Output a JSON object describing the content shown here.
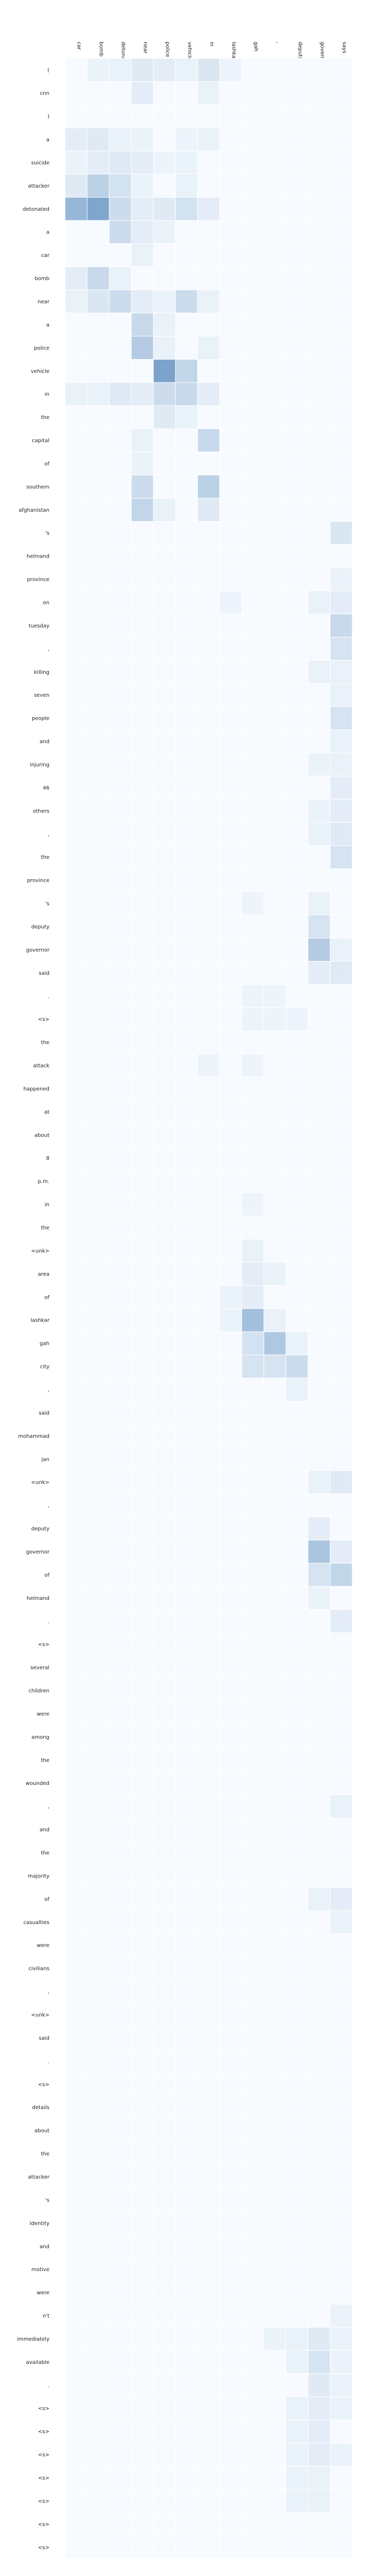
{
  "chart_data": {
    "type": "heatmap",
    "title": "",
    "xlabel": "",
    "ylabel": "",
    "colormap": "Blues",
    "color_low": "#f7fbff",
    "color_high": "#08519c",
    "value_range": [
      0,
      1
    ],
    "grid": true,
    "x_labels": [
      "car",
      "bomb",
      "detonated",
      "near",
      "police",
      "vehicle",
      "in",
      "lashkar",
      "gah",
      ",",
      "deputy",
      "governor",
      "says"
    ],
    "y_labels": [
      "(",
      "cnn",
      ")",
      "a",
      "suicide",
      "attacker",
      "detonated",
      "a",
      "car",
      "bomb",
      "near",
      "a",
      "police",
      "vehicle",
      "in",
      "the",
      "capital",
      "of",
      "southern",
      "afghanistan",
      "'s",
      "helmand",
      "province",
      "on",
      "tuesday",
      ",",
      "killing",
      "seven",
      "people",
      "and",
      "injuring",
      "46",
      "others",
      ",",
      "the",
      "province",
      "'s",
      "deputy",
      "governor",
      "said",
      ".",
      "<s>",
      "the",
      "attack",
      "happened",
      "at",
      "about",
      "8",
      "p.m.",
      "in",
      "the",
      "<unk>",
      "area",
      "of",
      "lashkar",
      "gah",
      "city",
      ",",
      "said",
      "mohammad",
      "jan",
      "<unk>",
      ",",
      "deputy",
      "governor",
      "of",
      "helmand",
      ".",
      "<s>",
      "several",
      "children",
      "were",
      "among",
      "the",
      "wounded",
      ",",
      "and",
      "the",
      "majority",
      "of",
      "casualties",
      "were",
      "civilians",
      ",",
      "<unk>",
      "said",
      ".",
      "<s>",
      "details",
      "about",
      "the",
      "attacker",
      "'s",
      "identity",
      "and",
      "motive",
      "were",
      "n't",
      "immediately",
      "available",
      ".",
      "<s>",
      "<s>",
      "<s>",
      "<s>",
      "<s>",
      "<s>",
      "<s>"
    ],
    "cells": [
      [
        3,
        0,
        0.08
      ],
      [
        3,
        1,
        0.1
      ],
      [
        3,
        2,
        0.06
      ],
      [
        3,
        3,
        0.05
      ],
      [
        3,
        5,
        0.04
      ],
      [
        3,
        6,
        0.05
      ],
      [
        0,
        1,
        0.05
      ],
      [
        0,
        2,
        0.06
      ],
      [
        0,
        3,
        0.1
      ],
      [
        0,
        4,
        0.08
      ],
      [
        0,
        5,
        0.06
      ],
      [
        0,
        6,
        0.12
      ],
      [
        0,
        7,
        0.04
      ],
      [
        1,
        3,
        0.08
      ],
      [
        1,
        6,
        0.06
      ],
      [
        4,
        0,
        0.05
      ],
      [
        4,
        1,
        0.08
      ],
      [
        4,
        2,
        0.1
      ],
      [
        4,
        3,
        0.08
      ],
      [
        4,
        4,
        0.04
      ],
      [
        4,
        5,
        0.05
      ],
      [
        5,
        0,
        0.1
      ],
      [
        5,
        1,
        0.25
      ],
      [
        5,
        2,
        0.15
      ],
      [
        5,
        3,
        0.05
      ],
      [
        5,
        5,
        0.06
      ],
      [
        6,
        0,
        0.4
      ],
      [
        6,
        1,
        0.5
      ],
      [
        6,
        2,
        0.18
      ],
      [
        6,
        3,
        0.08
      ],
      [
        6,
        4,
        0.1
      ],
      [
        6,
        5,
        0.15
      ],
      [
        6,
        6,
        0.08
      ],
      [
        7,
        2,
        0.18
      ],
      [
        7,
        3,
        0.08
      ],
      [
        7,
        4,
        0.05
      ],
      [
        8,
        3,
        0.06
      ],
      [
        9,
        0,
        0.08
      ],
      [
        9,
        1,
        0.2
      ],
      [
        9,
        2,
        0.06
      ],
      [
        10,
        0,
        0.06
      ],
      [
        10,
        1,
        0.12
      ],
      [
        10,
        2,
        0.18
      ],
      [
        10,
        3,
        0.08
      ],
      [
        10,
        4,
        0.05
      ],
      [
        10,
        5,
        0.18
      ],
      [
        10,
        6,
        0.06
      ],
      [
        11,
        3,
        0.2
      ],
      [
        11,
        4,
        0.06
      ],
      [
        12,
        3,
        0.28
      ],
      [
        12,
        4,
        0.06
      ],
      [
        12,
        6,
        0.06
      ],
      [
        13,
        4,
        0.52
      ],
      [
        13,
        5,
        0.22
      ],
      [
        14,
        0,
        0.06
      ],
      [
        14,
        1,
        0.06
      ],
      [
        14,
        2,
        0.1
      ],
      [
        14,
        3,
        0.08
      ],
      [
        14,
        4,
        0.18
      ],
      [
        14,
        5,
        0.2
      ],
      [
        14,
        6,
        0.08
      ],
      [
        15,
        4,
        0.1
      ],
      [
        15,
        5,
        0.06
      ],
      [
        16,
        3,
        0.06
      ],
      [
        16,
        6,
        0.2
      ],
      [
        17,
        3,
        0.05
      ],
      [
        18,
        3,
        0.18
      ],
      [
        18,
        6,
        0.25
      ],
      [
        19,
        3,
        0.22
      ],
      [
        19,
        4,
        0.06
      ],
      [
        19,
        6,
        0.1
      ],
      [
        20,
        12,
        0.12
      ],
      [
        22,
        12,
        0.05
      ],
      [
        23,
        7,
        0.04
      ],
      [
        23,
        11,
        0.06
      ],
      [
        23,
        12,
        0.08
      ],
      [
        24,
        12,
        0.2
      ],
      [
        25,
        12,
        0.14
      ],
      [
        26,
        11,
        0.06
      ],
      [
        26,
        12,
        0.06
      ],
      [
        27,
        12,
        0.06
      ],
      [
        28,
        12,
        0.14
      ],
      [
        29,
        12,
        0.06
      ],
      [
        30,
        11,
        0.05
      ],
      [
        30,
        12,
        0.06
      ],
      [
        31,
        12,
        0.08
      ],
      [
        32,
        11,
        0.05
      ],
      [
        32,
        12,
        0.08
      ],
      [
        33,
        11,
        0.06
      ],
      [
        33,
        12,
        0.1
      ],
      [
        34,
        12,
        0.14
      ],
      [
        36,
        8,
        0.04
      ],
      [
        36,
        11,
        0.06
      ],
      [
        37,
        11,
        0.14
      ],
      [
        38,
        11,
        0.28
      ],
      [
        38,
        12,
        0.06
      ],
      [
        39,
        11,
        0.08
      ],
      [
        39,
        12,
        0.1
      ],
      [
        40,
        8,
        0.04
      ],
      [
        40,
        9,
        0.04
      ],
      [
        41,
        8,
        0.04
      ],
      [
        41,
        9,
        0.04
      ],
      [
        41,
        10,
        0.04
      ],
      [
        43,
        6,
        0.04
      ],
      [
        43,
        8,
        0.04
      ],
      [
        49,
        8,
        0.04
      ],
      [
        51,
        8,
        0.06
      ],
      [
        52,
        8,
        0.08
      ],
      [
        52,
        9,
        0.05
      ],
      [
        53,
        7,
        0.05
      ],
      [
        53,
        8,
        0.08
      ],
      [
        54,
        7,
        0.05
      ],
      [
        54,
        8,
        0.35
      ],
      [
        54,
        9,
        0.06
      ],
      [
        55,
        8,
        0.15
      ],
      [
        55,
        9,
        0.3
      ],
      [
        55,
        10,
        0.06
      ],
      [
        56,
        8,
        0.14
      ],
      [
        56,
        9,
        0.14
      ],
      [
        56,
        10,
        0.18
      ],
      [
        57,
        10,
        0.06
      ],
      [
        61,
        11,
        0.06
      ],
      [
        61,
        12,
        0.1
      ],
      [
        63,
        11,
        0.08
      ],
      [
        64,
        11,
        0.32
      ],
      [
        64,
        12,
        0.08
      ],
      [
        65,
        11,
        0.14
      ],
      [
        65,
        12,
        0.22
      ],
      [
        66,
        11,
        0.05
      ],
      [
        67,
        12,
        0.08
      ],
      [
        75,
        12,
        0.06
      ],
      [
        79,
        11,
        0.06
      ],
      [
        79,
        12,
        0.08
      ],
      [
        80,
        12,
        0.05
      ],
      [
        97,
        12,
        0.05
      ],
      [
        98,
        9,
        0.05
      ],
      [
        98,
        10,
        0.06
      ],
      [
        98,
        11,
        0.1
      ],
      [
        98,
        12,
        0.05
      ],
      [
        99,
        10,
        0.06
      ],
      [
        99,
        11,
        0.14
      ],
      [
        99,
        12,
        0.05
      ],
      [
        100,
        11,
        0.1
      ],
      [
        100,
        12,
        0.05
      ],
      [
        101,
        10,
        0.06
      ],
      [
        101,
        11,
        0.08
      ],
      [
        101,
        12,
        0.05
      ],
      [
        102,
        10,
        0.05
      ],
      [
        102,
        11,
        0.08
      ],
      [
        103,
        10,
        0.05
      ],
      [
        103,
        11,
        0.08
      ],
      [
        103,
        12,
        0.05
      ],
      [
        104,
        10,
        0.05
      ],
      [
        104,
        11,
        0.06
      ],
      [
        105,
        10,
        0.05
      ],
      [
        105,
        11,
        0.06
      ]
    ]
  }
}
